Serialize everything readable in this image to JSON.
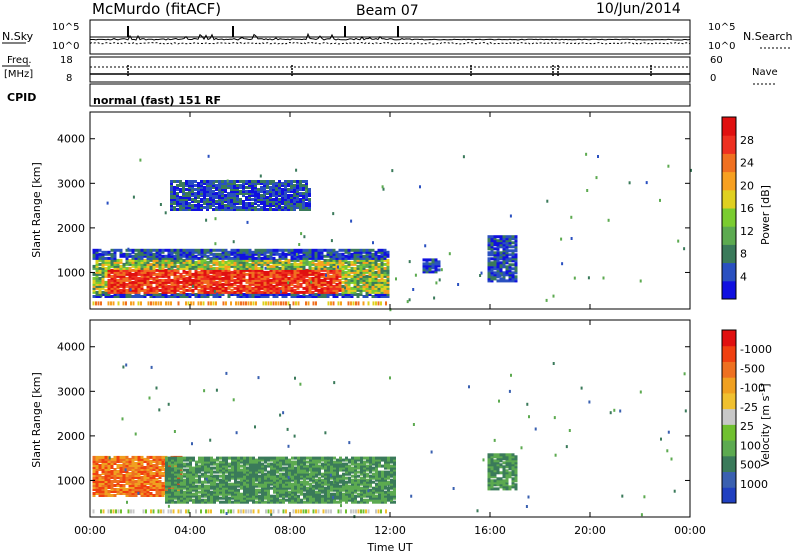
{
  "header": {
    "station": "McMurdo (fitACF)",
    "beam": "Beam 07",
    "date": "10/Jun/2014"
  },
  "nsky_panel": {
    "left_label": "N.Sky",
    "right_label": "N.Search",
    "left_ticks": [
      "10^5",
      "10^0"
    ],
    "right_ticks": [
      "10^5",
      "10^0"
    ]
  },
  "freq_panel": {
    "left_label_1": "Freq.",
    "left_label_2": "[MHz]",
    "right_label": "Nave",
    "left_ticks": [
      "18",
      "8"
    ],
    "right_ticks": [
      "60",
      "0"
    ]
  },
  "cpid_panel": {
    "label": "CPID",
    "text": "normal (fast) 151 RF"
  },
  "chart_data": [
    {
      "type": "heatmap",
      "name": "power",
      "ylabel": "Slant Range [km]",
      "x_ticks": [
        "00:00",
        "04:00",
        "08:00",
        "12:00",
        "16:00",
        "20:00",
        "00:00"
      ],
      "y_ticks": [
        "1000",
        "2000",
        "3000",
        "4000"
      ],
      "ylim": [
        180,
        4600
      ],
      "xlim_hours": [
        0,
        24
      ],
      "colorbar_label": "Power [dB]",
      "colorbar_ticks": [
        "4",
        "8",
        "12",
        "16",
        "20",
        "24",
        "28"
      ],
      "colorbar_colors": [
        "#1010e0",
        "#2a50c0",
        "#3a7a5a",
        "#5caa50",
        "#7acc30",
        "#e0d020",
        "#f7a020",
        "#f07020",
        "#ee3020",
        "#e01010"
      ],
      "regions": [
        {
          "t0": 0.1,
          "t1": 11.9,
          "r0": 450,
          "r1": 1500,
          "level": "mixed"
        },
        {
          "t0": 3.2,
          "t1": 8.8,
          "r0": 2400,
          "r1": 3050,
          "level": "low"
        },
        {
          "t0": 13.3,
          "t1": 13.9,
          "r0": 1000,
          "r1": 1300,
          "level": "low"
        },
        {
          "t0": 15.9,
          "t1": 17.1,
          "r0": 800,
          "r1": 1800,
          "level": "low"
        }
      ]
    },
    {
      "type": "heatmap",
      "name": "velocity",
      "ylabel": "Slant Range [km]",
      "xlabel": "Time UT",
      "x_ticks": [
        "00:00",
        "04:00",
        "08:00",
        "12:00",
        "16:00",
        "20:00",
        "00:00"
      ],
      "y_ticks": [
        "1000",
        "2000",
        "3000",
        "4000"
      ],
      "ylim": [
        180,
        4600
      ],
      "xlim_hours": [
        0,
        24
      ],
      "colorbar_label": "Velocity [m s^-1]",
      "colorbar_ticks": [
        "1000",
        "500",
        "100",
        "25",
        "-25",
        "-100",
        "-500",
        "-1000"
      ],
      "colorbar_colors": [
        "#2040c0",
        "#3a60b0",
        "#3a7a5a",
        "#5caa50",
        "#70c030",
        "#c8c8c8",
        "#f0c030",
        "#f0a020",
        "#ee7020",
        "#f04010",
        "#e01010"
      ],
      "regions": [
        {
          "t0": 0.1,
          "t1": 3.6,
          "r0": 650,
          "r1": 1550,
          "level": "negative"
        },
        {
          "t0": 3.0,
          "t1": 12.2,
          "r0": 500,
          "r1": 1500,
          "level": "positive"
        },
        {
          "t0": 15.9,
          "t1": 17.1,
          "r0": 800,
          "r1": 1600,
          "level": "positive"
        }
      ]
    }
  ]
}
